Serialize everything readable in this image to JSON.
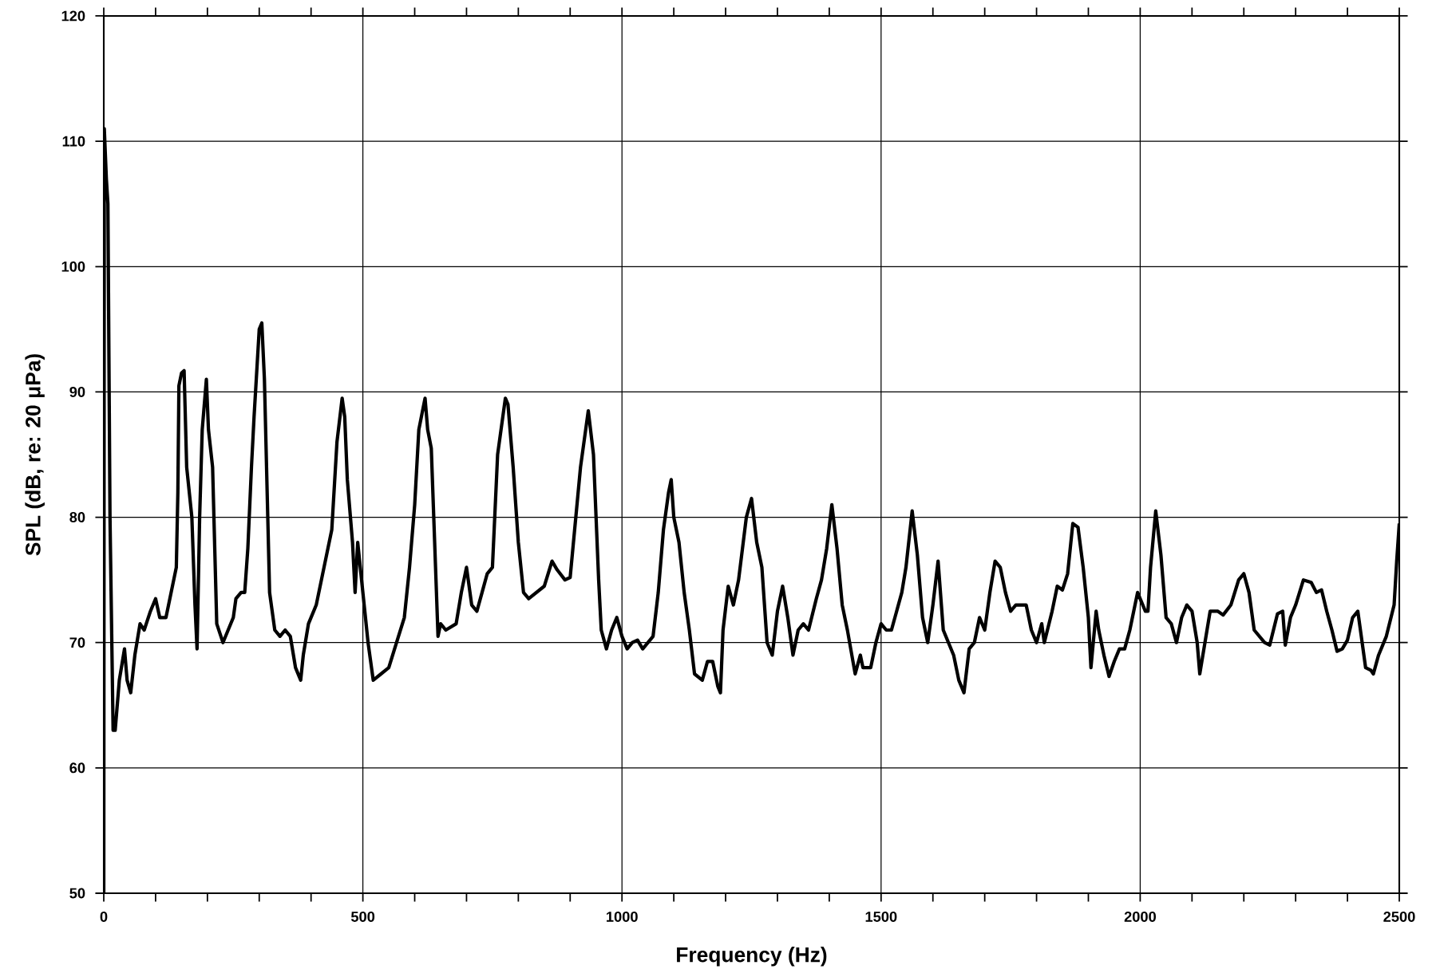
{
  "chart_data": {
    "type": "line",
    "xlabel": "Frequency (Hz)",
    "ylabel": "SPL (dB, re: 20 μPa)",
    "xlim": [
      0,
      2500
    ],
    "xticks": [
      0,
      500,
      1000,
      1500,
      2000,
      2500
    ],
    "ylim": [
      50,
      120
    ],
    "yticks": [
      50,
      60,
      70,
      80,
      90,
      100,
      110,
      120
    ],
    "grid": true,
    "marker": "none",
    "line_style": "solid",
    "series": [
      {
        "color": "#000000",
        "x": [
          0,
          1,
          5,
          8,
          12,
          18,
          22,
          30,
          40,
          45,
          52,
          60,
          70,
          78,
          90,
          100,
          108,
          120,
          130,
          140,
          143,
          145,
          150,
          155,
          160,
          170,
          176,
          180,
          185,
          190,
          198,
          202,
          210,
          218,
          230,
          240,
          250,
          255,
          265,
          272,
          278,
          285,
          290,
          300,
          305,
          310,
          320,
          330,
          340,
          350,
          360,
          370,
          380,
          385,
          395,
          410,
          420,
          430,
          440,
          450,
          460,
          465,
          470,
          480,
          485,
          490,
          500,
          510,
          520,
          535,
          550,
          565,
          580,
          590,
          600,
          608,
          620,
          625,
          632,
          645,
          650,
          660,
          680,
          690,
          700,
          710,
          720,
          730,
          740,
          750,
          760,
          775,
          780,
          790,
          800,
          810,
          820,
          835,
          850,
          865,
          875,
          890,
          900,
          920,
          935,
          945,
          955,
          960,
          970,
          980,
          990,
          1000,
          1010,
          1020,
          1030,
          1040,
          1060,
          1070,
          1080,
          1090,
          1095,
          1100,
          1110,
          1120,
          1130,
          1140,
          1155,
          1165,
          1175,
          1185,
          1190,
          1195,
          1205,
          1215,
          1225,
          1240,
          1250,
          1260,
          1270,
          1280,
          1290,
          1300,
          1310,
          1320,
          1330,
          1340,
          1350,
          1360,
          1375,
          1385,
          1395,
          1405,
          1415,
          1425,
          1435,
          1450,
          1460,
          1465,
          1480,
          1490,
          1500,
          1510,
          1520,
          1530,
          1540,
          1548,
          1560,
          1570,
          1580,
          1590,
          1600,
          1610,
          1620,
          1630,
          1640,
          1650,
          1660,
          1670,
          1680,
          1690,
          1700,
          1710,
          1720,
          1730,
          1740,
          1750,
          1760,
          1780,
          1790,
          1800,
          1810,
          1815,
          1830,
          1840,
          1850,
          1860,
          1870,
          1880,
          1890,
          1900,
          1905,
          1915,
          1920,
          1930,
          1940,
          1950,
          1960,
          1970,
          1980,
          1995,
          2010,
          2015,
          2020,
          2030,
          2040,
          2050,
          2060,
          2070,
          2080,
          2090,
          2100,
          2110,
          2115,
          2125,
          2135,
          2150,
          2160,
          2175,
          2190,
          2200,
          2210,
          2220,
          2230,
          2240,
          2250,
          2265,
          2275,
          2280,
          2290,
          2300,
          2315,
          2330,
          2340,
          2350,
          2360,
          2370,
          2380,
          2390,
          2400,
          2410,
          2420,
          2425,
          2435,
          2445,
          2450,
          2460,
          2475,
          2490,
          2495,
          2500
        ],
        "values": [
          50,
          111,
          107,
          105,
          80,
          63,
          63,
          67,
          69.5,
          67,
          66,
          69,
          71.5,
          71,
          72.5,
          73.5,
          72,
          72,
          74,
          76,
          82,
          90.5,
          91.5,
          91.7,
          84,
          80,
          73,
          69.5,
          80,
          87,
          91,
          87,
          84,
          71.5,
          70,
          71,
          72,
          73.5,
          74,
          74,
          77.5,
          84,
          88,
          95,
          95.5,
          91,
          74,
          71,
          70.5,
          71,
          70.5,
          68,
          67,
          69,
          71.5,
          73,
          75,
          77,
          79,
          86,
          89.5,
          88,
          83,
          78,
          74,
          78,
          74,
          70,
          67,
          67.5,
          68,
          70,
          72,
          76,
          81,
          87,
          89.5,
          87,
          85.5,
          70.5,
          71.5,
          71,
          71.5,
          74,
          76,
          73,
          72.5,
          74,
          75.5,
          76,
          85,
          89.5,
          89,
          84,
          78,
          74,
          73.5,
          74,
          74.5,
          76.5,
          75.8,
          75,
          75.2,
          84,
          88.5,
          85,
          75,
          71,
          69.5,
          71,
          72,
          70.5,
          69.5,
          70,
          70.2,
          69.5,
          70.5,
          74,
          79,
          82,
          83,
          80,
          78,
          74,
          71,
          67.5,
          67,
          68.5,
          68.5,
          66.5,
          66,
          71,
          74.5,
          73,
          75,
          80,
          81.5,
          78,
          76,
          70,
          69,
          72.5,
          74.5,
          72,
          69,
          71,
          71.5,
          71,
          73.5,
          75,
          77.5,
          81,
          77.5,
          73,
          71,
          67.5,
          69,
          68,
          68,
          70,
          71.5,
          71,
          71,
          72.5,
          74,
          76,
          80.5,
          77,
          72,
          70,
          73,
          76.5,
          71,
          70,
          69,
          67,
          66,
          69.5,
          70,
          72,
          71,
          74,
          76.5,
          76,
          74,
          72.5,
          73,
          73,
          71,
          70,
          71.5,
          70,
          72.5,
          74.5,
          74.2,
          75.5,
          79.5,
          79.2,
          76,
          72,
          68,
          72.5,
          71,
          69,
          67.3,
          68.5,
          69.5,
          69.5,
          71,
          74,
          72.5,
          72.5,
          76,
          80.5,
          77,
          72,
          71.5,
          70,
          72,
          73,
          72.5,
          70,
          67.5,
          70,
          72.5,
          72.5,
          72.2,
          73,
          75,
          75.5,
          74,
          71,
          70.5,
          70,
          69.8,
          72.3,
          72.5,
          69.8,
          72,
          73,
          75,
          74.8,
          74,
          74.2,
          72.5,
          71,
          69.3,
          69.5,
          70.2,
          72,
          72.5,
          71,
          68,
          67.8,
          67.5,
          69,
          70.5,
          73,
          76.5,
          79.5
        ]
      }
    ]
  }
}
